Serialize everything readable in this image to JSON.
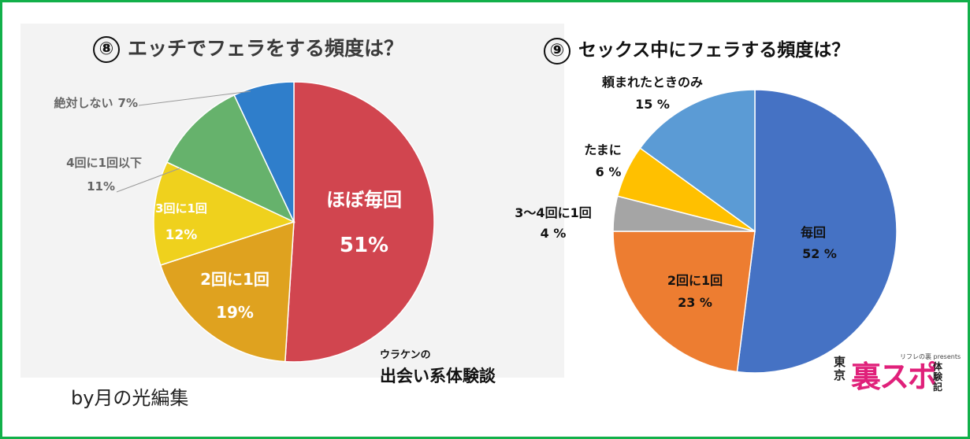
{
  "chart_data": [
    {
      "type": "pie",
      "title_number": "⑧",
      "title": "エッチでフェラをする頻度は？",
      "slices": [
        {
          "label": "ほぼ毎回",
          "value_label": "51%",
          "value": 51,
          "color": "#d1454f"
        },
        {
          "label": "2回に1回",
          "value_label": "19%",
          "value": 19,
          "color": "#dfa21f"
        },
        {
          "label": "3回に1回",
          "value_label": "12%",
          "value": 12,
          "color": "#efd11d"
        },
        {
          "label": "4回に1回以下",
          "value_label": "11%",
          "value": 11,
          "color": "#66b26c"
        },
        {
          "label": "絶対しない",
          "value_label": "7%",
          "value": 7,
          "color": "#2f7ecb"
        }
      ]
    },
    {
      "type": "pie",
      "title_number": "⑨",
      "title": "セックス中にフェラする頻度は？",
      "slices": [
        {
          "label": "毎回",
          "value_label": "52 %",
          "value": 52,
          "color": "#4572c4"
        },
        {
          "label": "2回に1回",
          "value_label": "23 %",
          "value": 23,
          "color": "#ed7d31"
        },
        {
          "label": "3～4回に1回",
          "value_label": "4 %",
          "value": 4,
          "color": "#a5a5a5"
        },
        {
          "label": "たまに",
          "value_label": "6 %",
          "value": 6,
          "color": "#ffc000"
        },
        {
          "label": "頼まれたときのみ",
          "value_label": "15 %",
          "value": 15,
          "color": "#5b9bd5"
        }
      ]
    }
  ],
  "credit": "by月の光編集",
  "brand": {
    "small": "ウラケンの",
    "big": "出会い系体験談"
  },
  "logo": {
    "tokyo": "東京",
    "main": "裏スポ",
    "sub": "リフレの裏 presents",
    "taiken": "体験記"
  },
  "colors": {
    "frame": "#12b04a",
    "panel": "#f3f3f3"
  }
}
